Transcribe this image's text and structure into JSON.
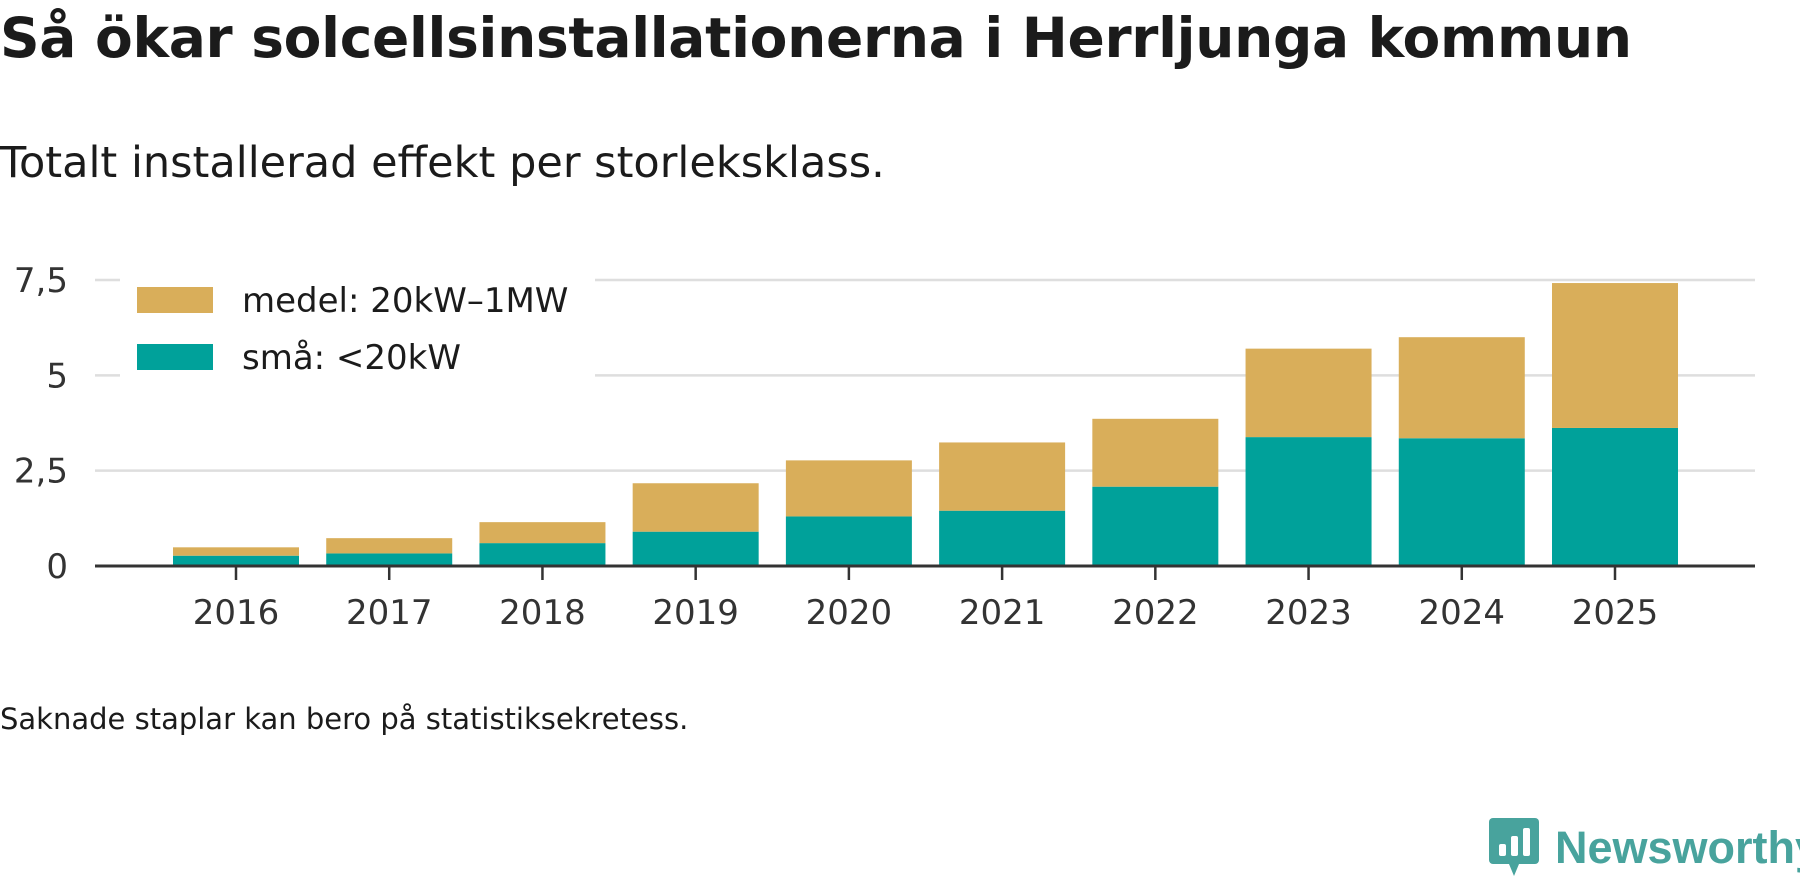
{
  "title": "Så ökar solcellsinstallationerna i Herrljunga kommun",
  "subtitle": "Totalt installerad effekt per storleksklass.",
  "note": "Saknade staplar kan bero på statistiksekretess.",
  "brand": {
    "name": "Newsworthy",
    "color": "#48a39d"
  },
  "chart_data": {
    "type": "bar",
    "stacked": true,
    "categories": [
      "2016",
      "2017",
      "2018",
      "2019",
      "2020",
      "2021",
      "2022",
      "2023",
      "2024",
      "2025"
    ],
    "series": [
      {
        "name": "små: <20kW",
        "color": "#00a19a",
        "values": [
          0.27,
          0.33,
          0.6,
          0.9,
          1.3,
          1.45,
          2.08,
          3.38,
          3.35,
          3.62
        ]
      },
      {
        "name": "medel: 20kW–1MW",
        "color": "#d9ae5a",
        "values": [
          0.22,
          0.4,
          0.55,
          1.27,
          1.47,
          1.79,
          1.78,
          2.32,
          2.65,
          3.8
        ]
      }
    ],
    "legend": [
      {
        "label": "medel: 20kW–1MW",
        "color": "#d9ae5a"
      },
      {
        "label": "små: <20kW",
        "color": "#00a19a"
      }
    ],
    "ylim": [
      0,
      7.5
    ],
    "yticks": [
      0,
      2.5,
      5,
      7.5
    ],
    "ytick_labels": [
      "0",
      "2,5",
      "5",
      "7,5"
    ],
    "xlabel": "",
    "ylabel": "",
    "grid": true,
    "legend_position": "top-left"
  }
}
